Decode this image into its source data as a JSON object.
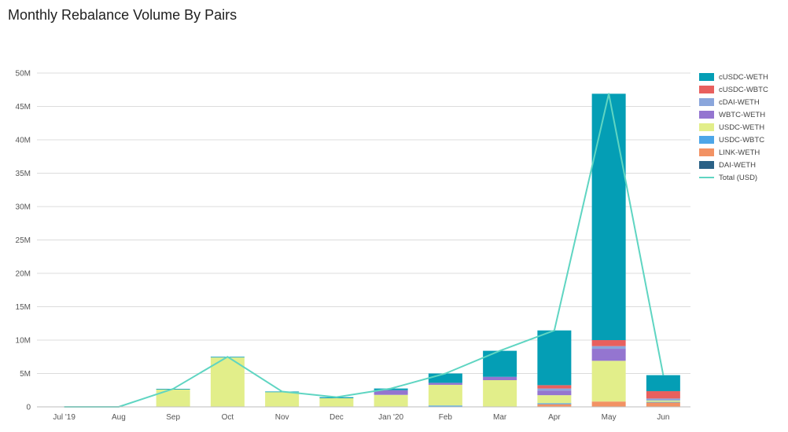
{
  "chart_data": {
    "type": "bar",
    "title": "Monthly Rebalance Volume By Pairs",
    "xlabel": "",
    "ylabel": "",
    "ylim": [
      0,
      50000000
    ],
    "yticks": [
      0,
      5000000,
      10000000,
      15000000,
      20000000,
      25000000,
      30000000,
      35000000,
      40000000,
      45000000,
      50000000
    ],
    "ytick_labels": [
      "0",
      "5M",
      "10M",
      "15M",
      "20M",
      "25M",
      "30M",
      "35M",
      "40M",
      "45M",
      "50M"
    ],
    "grid": true,
    "stacked": true,
    "categories": [
      "Jul '19",
      "Aug",
      "Sep",
      "Oct",
      "Nov",
      "Dec",
      "Jan '20",
      "Feb",
      "Mar",
      "Apr",
      "May",
      "Jun"
    ],
    "series": [
      {
        "name": "DAI-WETH",
        "color": "#2a6186",
        "values": [
          0,
          0,
          0,
          0,
          0,
          0,
          0,
          0,
          0,
          0,
          0,
          0
        ]
      },
      {
        "name": "LINK-WETH",
        "color": "#f29264",
        "values": [
          0,
          0,
          0,
          0,
          0,
          0,
          0,
          0,
          0,
          400000,
          800000,
          650000
        ]
      },
      {
        "name": "USDC-WBTC",
        "color": "#4da6e8",
        "values": [
          0,
          0,
          0,
          0,
          0,
          0,
          0,
          200000,
          0,
          150000,
          0,
          100000
        ]
      },
      {
        "name": "USDC-WETH",
        "color": "#e2ee8a",
        "values": [
          0,
          0,
          2600000,
          7400000,
          2200000,
          1300000,
          1800000,
          3100000,
          4000000,
          1200000,
          6100000,
          200000
        ]
      },
      {
        "name": "WBTC-WETH",
        "color": "#9475d0",
        "values": [
          0,
          0,
          0,
          0,
          0,
          0,
          700000,
          300000,
          500000,
          700000,
          1800000,
          0
        ]
      },
      {
        "name": "cDAI-WETH",
        "color": "#8aa6dc",
        "values": [
          0,
          0,
          0,
          0,
          0,
          0,
          0,
          0,
          0,
          300000,
          400000,
          300000
        ]
      },
      {
        "name": "cUSDC-WBTC",
        "color": "#e8605e",
        "values": [
          0,
          0,
          0,
          0,
          0,
          0,
          0,
          0,
          0,
          500000,
          900000,
          1100000
        ]
      },
      {
        "name": "cUSDC-WETH",
        "color": "#049eb5",
        "values": [
          0,
          0,
          100000,
          100000,
          100000,
          150000,
          250000,
          1400000,
          3900000,
          8200000,
          36900000,
          2400000
        ]
      }
    ],
    "legend_order": [
      "cUSDC-WETH",
      "cUSDC-WBTC",
      "cDAI-WETH",
      "WBTC-WETH",
      "USDC-WETH",
      "USDC-WBTC",
      "LINK-WETH",
      "DAI-WETH"
    ],
    "line_series": {
      "name": "Total (USD)",
      "color": "#5fd5c2",
      "values": [
        0,
        0,
        2700000,
        7500000,
        2300000,
        1450000,
        2750000,
        5000000,
        8400000,
        11450000,
        46900000,
        4750000
      ]
    },
    "legend_position": "right"
  },
  "colors": {
    "grid": "#dcdcdc",
    "axis": "#bdbdbd",
    "tick_text": "#555555",
    "title_text": "#212121"
  }
}
